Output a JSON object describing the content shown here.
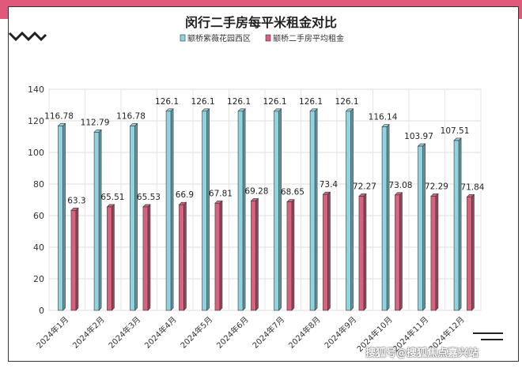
{
  "chart_data": {
    "type": "bar",
    "title": "闵行二手房每平米租金对比",
    "categories": [
      "2024年1月",
      "2024年2月",
      "2024年3月",
      "2024年4月",
      "2024年5月",
      "2024年6月",
      "2024年7月",
      "2024年8月",
      "2024年9月",
      "2024年10月",
      "2024年11月",
      "2024年12月"
    ],
    "series": [
      {
        "name": "颛桥紫薇花园西区",
        "color": "#8dd4e0",
        "values": [
          116.78,
          112.79,
          116.78,
          126.1,
          126.1,
          126.1,
          126.1,
          126.1,
          126.1,
          116.14,
          103.97,
          107.51
        ]
      },
      {
        "name": "颛桥二手房平均租金",
        "color": "#d9637f",
        "values": [
          63.3,
          65.51,
          65.53,
          66.9,
          67.81,
          69.28,
          68.65,
          73.4,
          72.27,
          73.08,
          72.29,
          71.84
        ]
      }
    ],
    "ylim": [
      0,
      140
    ],
    "yticks": [
      0,
      20,
      40,
      60,
      80,
      100,
      120,
      140
    ],
    "grid": true,
    "legend_position": "top-center",
    "data_labels": true
  },
  "watermark": "搜狐号@搜狐焦点嘉兴站"
}
